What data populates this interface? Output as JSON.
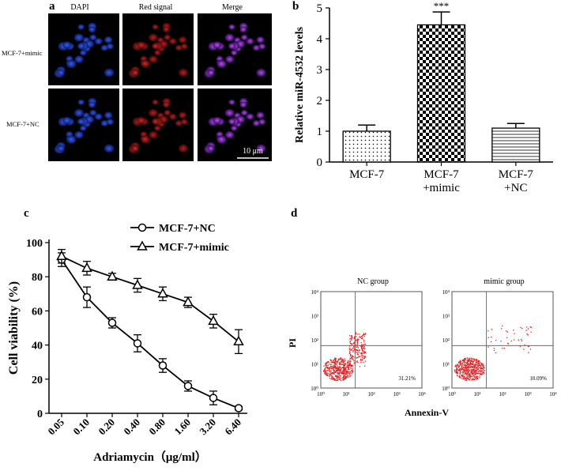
{
  "panel_labels": {
    "a": "a",
    "b": "b",
    "c": "c",
    "d": "d"
  },
  "panel_a": {
    "columns": [
      "DAPI",
      "Red signal",
      "Merge"
    ],
    "rows": [
      "MCF-7+mimic",
      "MCF-7+NC"
    ],
    "scale_bar": "10 μm"
  },
  "panel_d": {
    "plot_titles": [
      "NC group",
      "mimic group"
    ],
    "quadrant_values": [
      "31.21%",
      "10.09%"
    ],
    "y_axis": "PI",
    "x_axis": "Annexin-V",
    "tick_labels": [
      "10⁰",
      "10¹",
      "10²",
      "10³",
      "10⁴"
    ]
  },
  "colors": {
    "dapi": "#1a3fd6",
    "red_signal": "#d81818",
    "merge": "#b030c8",
    "flow_dots": "#e02020"
  },
  "chart_data": [
    {
      "type": "bar",
      "categories": [
        "MCF-7",
        "MCF-7\n+mimic",
        "MCF-7\n+NC"
      ],
      "category_lines": [
        [
          "MCF-7"
        ],
        [
          "MCF-7",
          "+mimic"
        ],
        [
          "MCF-7",
          "+NC"
        ]
      ],
      "values": [
        1.0,
        4.45,
        1.1
      ],
      "errors": [
        0.2,
        0.42,
        0.15
      ],
      "patterns": [
        "dots",
        "checker",
        "hlines"
      ],
      "annotation": "***",
      "ylabel": "Relative miR-4532 levels",
      "xlabel": "",
      "ylim": [
        0,
        5
      ],
      "yticks": [
        "0",
        "1",
        "2",
        "3",
        "4",
        "5"
      ]
    },
    {
      "type": "line",
      "categories": [
        "0.05",
        "0.10",
        "0.20",
        "0.40",
        "0.80",
        "1.60",
        "3.20",
        "6.40"
      ],
      "series": [
        {
          "name": "MCF-7+NC",
          "marker": "circle",
          "values": [
            90,
            68,
            53,
            41,
            28,
            16,
            9,
            3
          ],
          "errors": [
            4,
            6,
            3,
            5,
            4,
            3,
            4,
            1
          ]
        },
        {
          "name": "MCF-7+mimic",
          "marker": "triangle",
          "values": [
            92,
            85,
            80,
            75,
            70,
            65,
            54,
            42
          ],
          "errors": [
            4,
            4,
            2,
            4,
            4,
            3,
            4,
            7
          ]
        }
      ],
      "xlabel": "Adriamycin（μg/ml）",
      "ylabel": "Cell viability (%)",
      "ylim": [
        0,
        100
      ],
      "yticks": [
        "0",
        "20",
        "40",
        "60",
        "80",
        "100"
      ]
    }
  ]
}
